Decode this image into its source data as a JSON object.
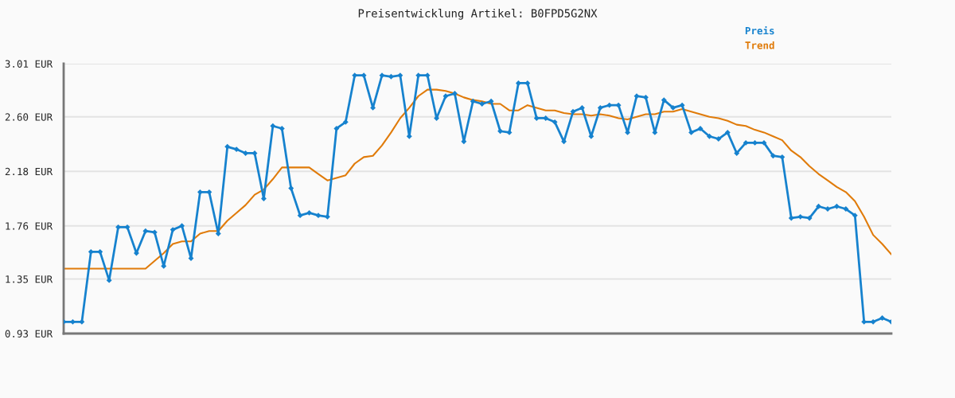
{
  "chart_data": {
    "type": "line",
    "title": "Preisentwicklung Artikel: B0FPD5G2NX",
    "categories": [
      null,
      null,
      null,
      null,
      null,
      null,
      null,
      null,
      null,
      null,
      null,
      null,
      null,
      null,
      null,
      null,
      null,
      null,
      null,
      null,
      null,
      null,
      null,
      null,
      null,
      null,
      null,
      null,
      null,
      null,
      null,
      null,
      null,
      null,
      null,
      null,
      null,
      null,
      null,
      null,
      null,
      null,
      null,
      null,
      null,
      null,
      null,
      null,
      null,
      null,
      null,
      null,
      null,
      null,
      null,
      null,
      null,
      null,
      null,
      null,
      null,
      null,
      null,
      null,
      null,
      null,
      null,
      null,
      null,
      null,
      null,
      null,
      null,
      null,
      null,
      null,
      null,
      null,
      null,
      null,
      null,
      null,
      null,
      null,
      null,
      null,
      null,
      null,
      null,
      null,
      null,
      null
    ],
    "series": [
      {
        "name": "Preis",
        "color": "#1682ce",
        "marker": "diamond",
        "values": [
          1.02,
          1.02,
          1.02,
          1.56,
          1.56,
          1.34,
          1.75,
          1.75,
          1.55,
          1.72,
          1.71,
          1.45,
          1.73,
          1.76,
          1.51,
          2.02,
          2.02,
          1.7,
          2.37,
          2.35,
          2.32,
          2.32,
          1.97,
          2.53,
          2.51,
          2.05,
          1.84,
          1.86,
          1.84,
          1.83,
          2.51,
          2.56,
          2.92,
          2.92,
          2.67,
          2.92,
          2.91,
          2.92,
          2.45,
          2.92,
          2.92,
          2.59,
          2.76,
          2.78,
          2.41,
          2.72,
          2.7,
          2.72,
          2.49,
          2.48,
          2.86,
          2.86,
          2.59,
          2.59,
          2.56,
          2.41,
          2.64,
          2.67,
          2.45,
          2.67,
          2.69,
          2.69,
          2.48,
          2.76,
          2.75,
          2.48,
          2.73,
          2.67,
          2.69,
          2.48,
          2.51,
          2.45,
          2.43,
          2.48,
          2.32,
          2.4,
          2.4,
          2.4,
          2.3,
          2.29,
          1.82,
          1.83,
          1.82,
          1.91,
          1.89,
          1.91,
          1.89,
          1.84,
          1.02,
          1.02,
          1.05,
          1.02
        ]
      },
      {
        "name": "Trend",
        "color": "#e07b0a",
        "marker": "none",
        "values": [
          1.43,
          1.43,
          1.43,
          1.43,
          1.43,
          1.43,
          1.43,
          1.43,
          1.43,
          1.43,
          1.49,
          1.55,
          1.62,
          1.64,
          1.64,
          1.7,
          1.72,
          1.72,
          1.8,
          1.86,
          1.92,
          2.0,
          2.04,
          2.12,
          2.21,
          2.21,
          2.21,
          2.21,
          2.16,
          2.11,
          2.13,
          2.15,
          2.24,
          2.29,
          2.3,
          2.38,
          2.48,
          2.59,
          2.67,
          2.76,
          2.81,
          2.81,
          2.8,
          2.78,
          2.75,
          2.73,
          2.72,
          2.7,
          2.7,
          2.65,
          2.65,
          2.69,
          2.67,
          2.65,
          2.65,
          2.63,
          2.62,
          2.62,
          2.61,
          2.62,
          2.61,
          2.59,
          2.58,
          2.6,
          2.62,
          2.62,
          2.64,
          2.64,
          2.66,
          2.64,
          2.62,
          2.6,
          2.59,
          2.57,
          2.54,
          2.53,
          2.5,
          2.48,
          2.45,
          2.42,
          2.34,
          2.29,
          2.22,
          2.16,
          2.11,
          2.06,
          2.02,
          1.95,
          1.83,
          1.69,
          1.62,
          1.54
        ]
      }
    ],
    "ylim": [
      0.93,
      3.01
    ],
    "yticks": [
      {
        "value": 0.93,
        "label": "0.93 EUR"
      },
      {
        "value": 1.35,
        "label": "1.35 EUR"
      },
      {
        "value": 1.76,
        "label": "1.76 EUR"
      },
      {
        "value": 2.18,
        "label": "2.18 EUR"
      },
      {
        "value": 2.6,
        "label": "2.60 EUR"
      },
      {
        "value": 3.01,
        "label": "3.01 EUR"
      }
    ],
    "grid": "y",
    "legend": "top right",
    "tick_labels": "y",
    "line_style": "solid"
  }
}
